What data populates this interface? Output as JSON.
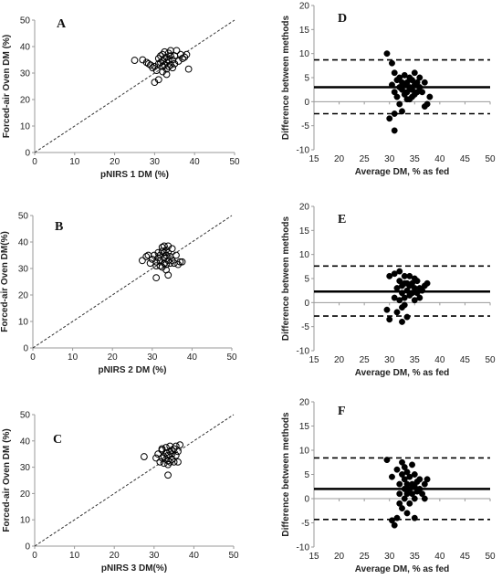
{
  "chart_data": [
    {
      "panel": "A",
      "type": "scatter",
      "xlabel": "pNIRS 1 DM (%)",
      "ylabel": "Forced-air Oven DM (%)",
      "xlim": [
        0,
        50
      ],
      "ylim": [
        0,
        50
      ],
      "xticks": [
        0,
        10,
        20,
        30,
        40,
        50
      ],
      "yticks": [
        0,
        10,
        20,
        30,
        40,
        50
      ],
      "identity_line": true,
      "marker": "open-circle",
      "points": [
        [
          25,
          34.8
        ],
        [
          27,
          35
        ],
        [
          28,
          34
        ],
        [
          28.5,
          33.5
        ],
        [
          29,
          33
        ],
        [
          29.5,
          32
        ],
        [
          30,
          32.5
        ],
        [
          30.5,
          31
        ],
        [
          31,
          33.5
        ],
        [
          31,
          35.5
        ],
        [
          31.5,
          34
        ],
        [
          31.5,
          36.5
        ],
        [
          32,
          32.5
        ],
        [
          32,
          34.5
        ],
        [
          32,
          37
        ],
        [
          32.5,
          33
        ],
        [
          32.5,
          35.5
        ],
        [
          32.5,
          38
        ],
        [
          33,
          31.5
        ],
        [
          33,
          34
        ],
        [
          33,
          36
        ],
        [
          33.5,
          32.5
        ],
        [
          33.5,
          35
        ],
        [
          33.5,
          37.5
        ],
        [
          34,
          33
        ],
        [
          34,
          36.5
        ],
        [
          34,
          38.5
        ],
        [
          34.5,
          32
        ],
        [
          34.5,
          35
        ],
        [
          35,
          33.5
        ],
        [
          35,
          36.5
        ],
        [
          35.5,
          38.5
        ],
        [
          36,
          34.5
        ],
        [
          36.5,
          37
        ],
        [
          37,
          35.5
        ],
        [
          37.5,
          36
        ],
        [
          38,
          37
        ],
        [
          38.5,
          31.5
        ],
        [
          30,
          26.5
        ],
        [
          31,
          27.5
        ],
        [
          32,
          30.5
        ],
        [
          33,
          29.5
        ]
      ]
    },
    {
      "panel": "D",
      "type": "scatter",
      "xlabel": "Average DM, % as fed",
      "ylabel": "Difference between methods",
      "xlim": [
        15,
        50
      ],
      "ylim": [
        -10,
        20
      ],
      "xticks": [
        15,
        20,
        25,
        30,
        35,
        40,
        45,
        50
      ],
      "yticks": [
        -10,
        -5,
        0,
        5,
        10,
        15,
        20
      ],
      "mean_line": 3,
      "upper_limit": 8.7,
      "lower_limit": -2.5,
      "marker": "filled-circle",
      "points": [
        [
          29.5,
          10
        ],
        [
          30.5,
          8
        ],
        [
          31,
          6
        ],
        [
          30.5,
          3.5
        ],
        [
          31,
          2
        ],
        [
          31.5,
          4.5
        ],
        [
          31.5,
          1
        ],
        [
          32,
          3
        ],
        [
          32,
          5
        ],
        [
          32,
          -0.5
        ],
        [
          32.5,
          2.5
        ],
        [
          32.5,
          4
        ],
        [
          33,
          1.5
        ],
        [
          33,
          3.5
        ],
        [
          33,
          5.5
        ],
        [
          33.5,
          2
        ],
        [
          33.5,
          4
        ],
        [
          34,
          3
        ],
        [
          34,
          5
        ],
        [
          34,
          0.5
        ],
        [
          34.5,
          2.5
        ],
        [
          34.5,
          4.5
        ],
        [
          35,
          1.5
        ],
        [
          35,
          3.5
        ],
        [
          35,
          6
        ],
        [
          35.5,
          2
        ],
        [
          35.5,
          4
        ],
        [
          36,
          3
        ],
        [
          36,
          5
        ],
        [
          36.5,
          2
        ],
        [
          37,
          4
        ],
        [
          37.5,
          -0.5
        ],
        [
          38,
          1
        ],
        [
          37,
          -1
        ],
        [
          30,
          -3.5
        ],
        [
          31,
          -6
        ],
        [
          32.5,
          -2
        ],
        [
          31,
          -2.5
        ],
        [
          33.5,
          0.5
        ],
        [
          34.5,
          1
        ]
      ]
    },
    {
      "panel": "B",
      "type": "scatter",
      "xlabel": "pNIRS 2 DM (%)",
      "ylabel": "Forced-air Oven DM(%)",
      "xlim": [
        0,
        50
      ],
      "ylim": [
        0,
        50
      ],
      "xticks": [
        0,
        10,
        20,
        30,
        40,
        50
      ],
      "yticks": [
        0,
        10,
        20,
        30,
        40,
        50
      ],
      "identity_line": true,
      "marker": "open-circle",
      "points": [
        [
          27.5,
          33
        ],
        [
          28.5,
          34.5
        ],
        [
          29,
          35
        ],
        [
          29.5,
          32
        ],
        [
          30,
          33.5
        ],
        [
          30.5,
          35
        ],
        [
          31,
          26.5
        ],
        [
          31,
          32.5
        ],
        [
          31.5,
          34
        ],
        [
          31.5,
          36
        ],
        [
          32,
          31
        ],
        [
          32,
          33
        ],
        [
          32,
          35
        ],
        [
          32.5,
          36.5
        ],
        [
          32.5,
          38
        ],
        [
          33,
          32
        ],
        [
          33,
          34
        ],
        [
          33,
          36
        ],
        [
          33,
          38.5
        ],
        [
          33.5,
          31.5
        ],
        [
          33.5,
          35
        ],
        [
          33.5,
          37
        ],
        [
          34,
          27.5
        ],
        [
          34,
          33
        ],
        [
          34,
          36
        ],
        [
          34,
          38.5
        ],
        [
          34.5,
          32
        ],
        [
          34.5,
          34.5
        ],
        [
          35,
          33
        ],
        [
          35,
          37.5
        ],
        [
          35.5,
          32
        ],
        [
          36,
          35
        ],
        [
          36.5,
          31.5
        ],
        [
          37,
          32.5
        ],
        [
          37.5,
          32.5
        ],
        [
          32.5,
          30.5
        ],
        [
          33.5,
          29.5
        ],
        [
          31,
          31
        ]
      ]
    },
    {
      "panel": "E",
      "type": "scatter",
      "xlabel": "Average DM, % as fed",
      "ylabel": "Difference between methods",
      "xlim": [
        15,
        50
      ],
      "ylim": [
        -10,
        20
      ],
      "xticks": [
        15,
        20,
        25,
        30,
        35,
        40,
        45,
        50
      ],
      "yticks": [
        -10,
        -5,
        0,
        5,
        10,
        15,
        20
      ],
      "mean_line": 2.3,
      "upper_limit": 7.6,
      "lower_limit": -2.8,
      "marker": "filled-circle",
      "points": [
        [
          29.5,
          -1.5
        ],
        [
          30,
          -3.5
        ],
        [
          30,
          5.5
        ],
        [
          31,
          6
        ],
        [
          31,
          1
        ],
        [
          31.5,
          3
        ],
        [
          32,
          4.5
        ],
        [
          32,
          6.5
        ],
        [
          32,
          0.5
        ],
        [
          32.5,
          2
        ],
        [
          32.5,
          3.5
        ],
        [
          32.5,
          -1
        ],
        [
          33,
          1
        ],
        [
          33,
          4
        ],
        [
          33,
          5.5
        ],
        [
          33,
          -0.5
        ],
        [
          33.5,
          2.5
        ],
        [
          33.5,
          4
        ],
        [
          34,
          1.5
        ],
        [
          34,
          3.5
        ],
        [
          34,
          5.5
        ],
        [
          34.5,
          2
        ],
        [
          34.5,
          4
        ],
        [
          35,
          3
        ],
        [
          35,
          5
        ],
        [
          35,
          0.5
        ],
        [
          35.5,
          2
        ],
        [
          35.5,
          4.5
        ],
        [
          36,
          3
        ],
        [
          36,
          1
        ],
        [
          36.5,
          2.5
        ],
        [
          37,
          3.5
        ],
        [
          37.5,
          4
        ],
        [
          32.5,
          -4
        ],
        [
          33.5,
          -3
        ],
        [
          31.5,
          -2
        ]
      ]
    },
    {
      "panel": "C",
      "type": "scatter",
      "xlabel": "pNIRS 3 DM(%)",
      "ylabel": "Forced-air Oven DM (%)",
      "xlim": [
        0,
        50
      ],
      "ylim": [
        0,
        50
      ],
      "xticks": [
        0,
        10,
        20,
        30,
        40,
        50
      ],
      "yticks": [
        0,
        10,
        20,
        30,
        40,
        50
      ],
      "identity_line": true,
      "marker": "open-circle",
      "points": [
        [
          27.5,
          34
        ],
        [
          30.5,
          33.5
        ],
        [
          31,
          35
        ],
        [
          31.5,
          32
        ],
        [
          32,
          33.5
        ],
        [
          32,
          36.5
        ],
        [
          32.5,
          31.5
        ],
        [
          32.5,
          34
        ],
        [
          33,
          33
        ],
        [
          33,
          35.5
        ],
        [
          33,
          37.5
        ],
        [
          33.5,
          31
        ],
        [
          33.5,
          32.5
        ],
        [
          33.5,
          34.5
        ],
        [
          33.5,
          27
        ],
        [
          34,
          32
        ],
        [
          34,
          36
        ],
        [
          34,
          38
        ],
        [
          34.5,
          33
        ],
        [
          34.5,
          35
        ],
        [
          35,
          32
        ],
        [
          35,
          37
        ],
        [
          35.5,
          34.5
        ],
        [
          35.5,
          38
        ],
        [
          36,
          32
        ],
        [
          36,
          36
        ],
        [
          36.5,
          38.5
        ],
        [
          32,
          37
        ],
        [
          34.5,
          36.5
        ]
      ]
    },
    {
      "panel": "F",
      "type": "scatter",
      "xlabel": "Average DM, % as fed",
      "ylabel": "Difference between methods",
      "xlim": [
        15,
        50
      ],
      "ylim": [
        -10,
        20
      ],
      "xticks": [
        15,
        20,
        25,
        30,
        35,
        40,
        45,
        50
      ],
      "yticks": [
        -10,
        -5,
        0,
        5,
        10,
        15,
        20
      ],
      "mean_line": 2,
      "upper_limit": 8.4,
      "lower_limit": -4.3,
      "marker": "filled-circle",
      "points": [
        [
          29.5,
          8
        ],
        [
          30.5,
          4.5
        ],
        [
          30.5,
          -4.5
        ],
        [
          31,
          -5.5
        ],
        [
          31.5,
          -4
        ],
        [
          31.5,
          6
        ],
        [
          32,
          1
        ],
        [
          32,
          -1
        ],
        [
          32,
          3
        ],
        [
          32.5,
          5
        ],
        [
          32.5,
          7.5
        ],
        [
          32.5,
          -2
        ],
        [
          33,
          0
        ],
        [
          33,
          2
        ],
        [
          33,
          4
        ],
        [
          33,
          6.5
        ],
        [
          33.5,
          1
        ],
        [
          33.5,
          3
        ],
        [
          33.5,
          5.5
        ],
        [
          34,
          -1
        ],
        [
          34,
          2
        ],
        [
          34,
          4.5
        ],
        [
          34.5,
          1
        ],
        [
          34.5,
          3
        ],
        [
          34.5,
          7
        ],
        [
          35,
          0
        ],
        [
          35,
          2.5
        ],
        [
          35,
          5
        ],
        [
          35.5,
          1.5
        ],
        [
          35.5,
          3.5
        ],
        [
          36,
          2
        ],
        [
          36,
          4
        ],
        [
          36.5,
          1
        ],
        [
          37,
          3
        ],
        [
          37,
          0
        ],
        [
          37.5,
          4
        ],
        [
          35,
          -4
        ],
        [
          33.5,
          -3
        ]
      ]
    }
  ]
}
